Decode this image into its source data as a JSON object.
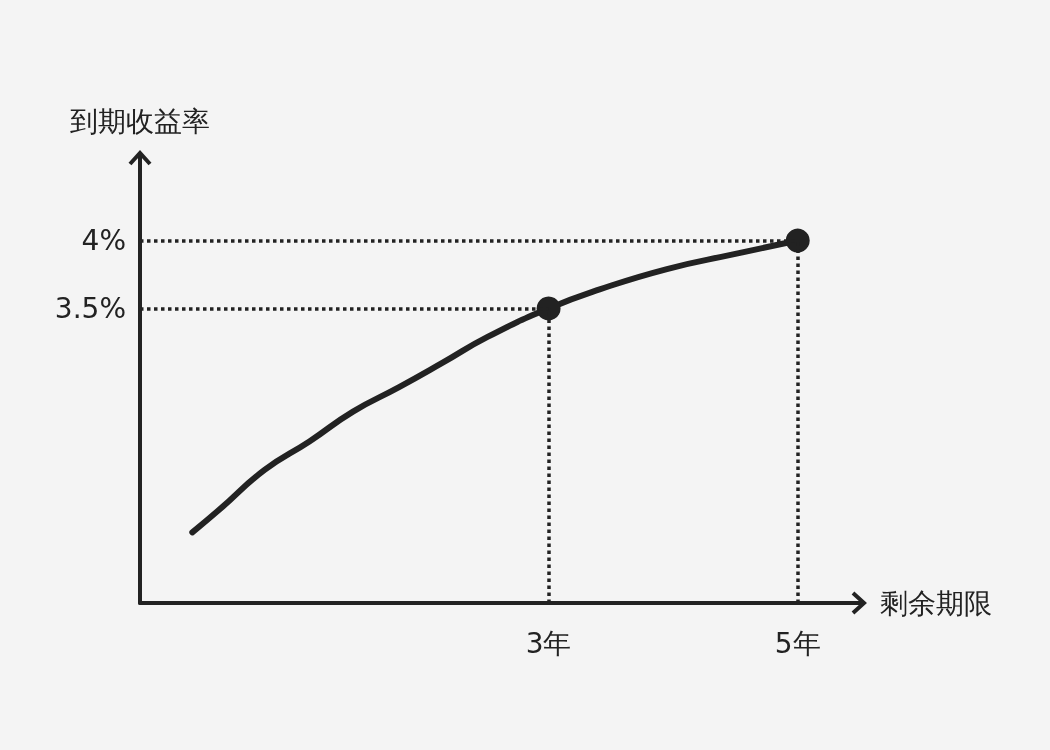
{
  "chart_data": {
    "type": "line",
    "xlabel": "剩余期限",
    "ylabel": "到期收益率",
    "xlim": [
      -0.28,
      5.5
    ],
    "ylim": [
      1.33,
      4.63
    ],
    "xticks": [
      {
        "value": 3,
        "label": "3年"
      },
      {
        "value": 5,
        "label": "5年"
      }
    ],
    "yticks": [
      {
        "value": 3.5,
        "label": "3.5%"
      },
      {
        "value": 4,
        "label": "4%"
      }
    ],
    "grid": false,
    "line_style": "solid",
    "series": [
      {
        "color": "#222222",
        "marker": "none",
        "x": [
          0.14,
          0.36,
          0.72,
          1.08,
          1.43,
          1.8,
          2.15,
          2.51,
          3,
          3.41,
          3.95,
          4.49,
          5
        ],
        "values": [
          1.85,
          2.02,
          2.31,
          2.52,
          2.74,
          2.92,
          3.1,
          3.29,
          3.5,
          3.64,
          3.79,
          3.9,
          4
        ]
      },
      {
        "type": "scatter",
        "color": "#222222",
        "marker": "circle",
        "x": [
          3,
          5
        ],
        "values": [
          3.5,
          4
        ]
      }
    ],
    "ref_lines": [
      {
        "axis": "x",
        "value": 3,
        "color": "#222222",
        "line_style": "dotted"
      },
      {
        "axis": "x",
        "value": 5,
        "color": "#222222",
        "line_style": "dotted"
      },
      {
        "axis": "y",
        "value": 3.5,
        "color": "#222222",
        "line_style": "dotted"
      },
      {
        "axis": "y",
        "value": 4,
        "color": "#222222",
        "line_style": "dotted"
      }
    ]
  }
}
